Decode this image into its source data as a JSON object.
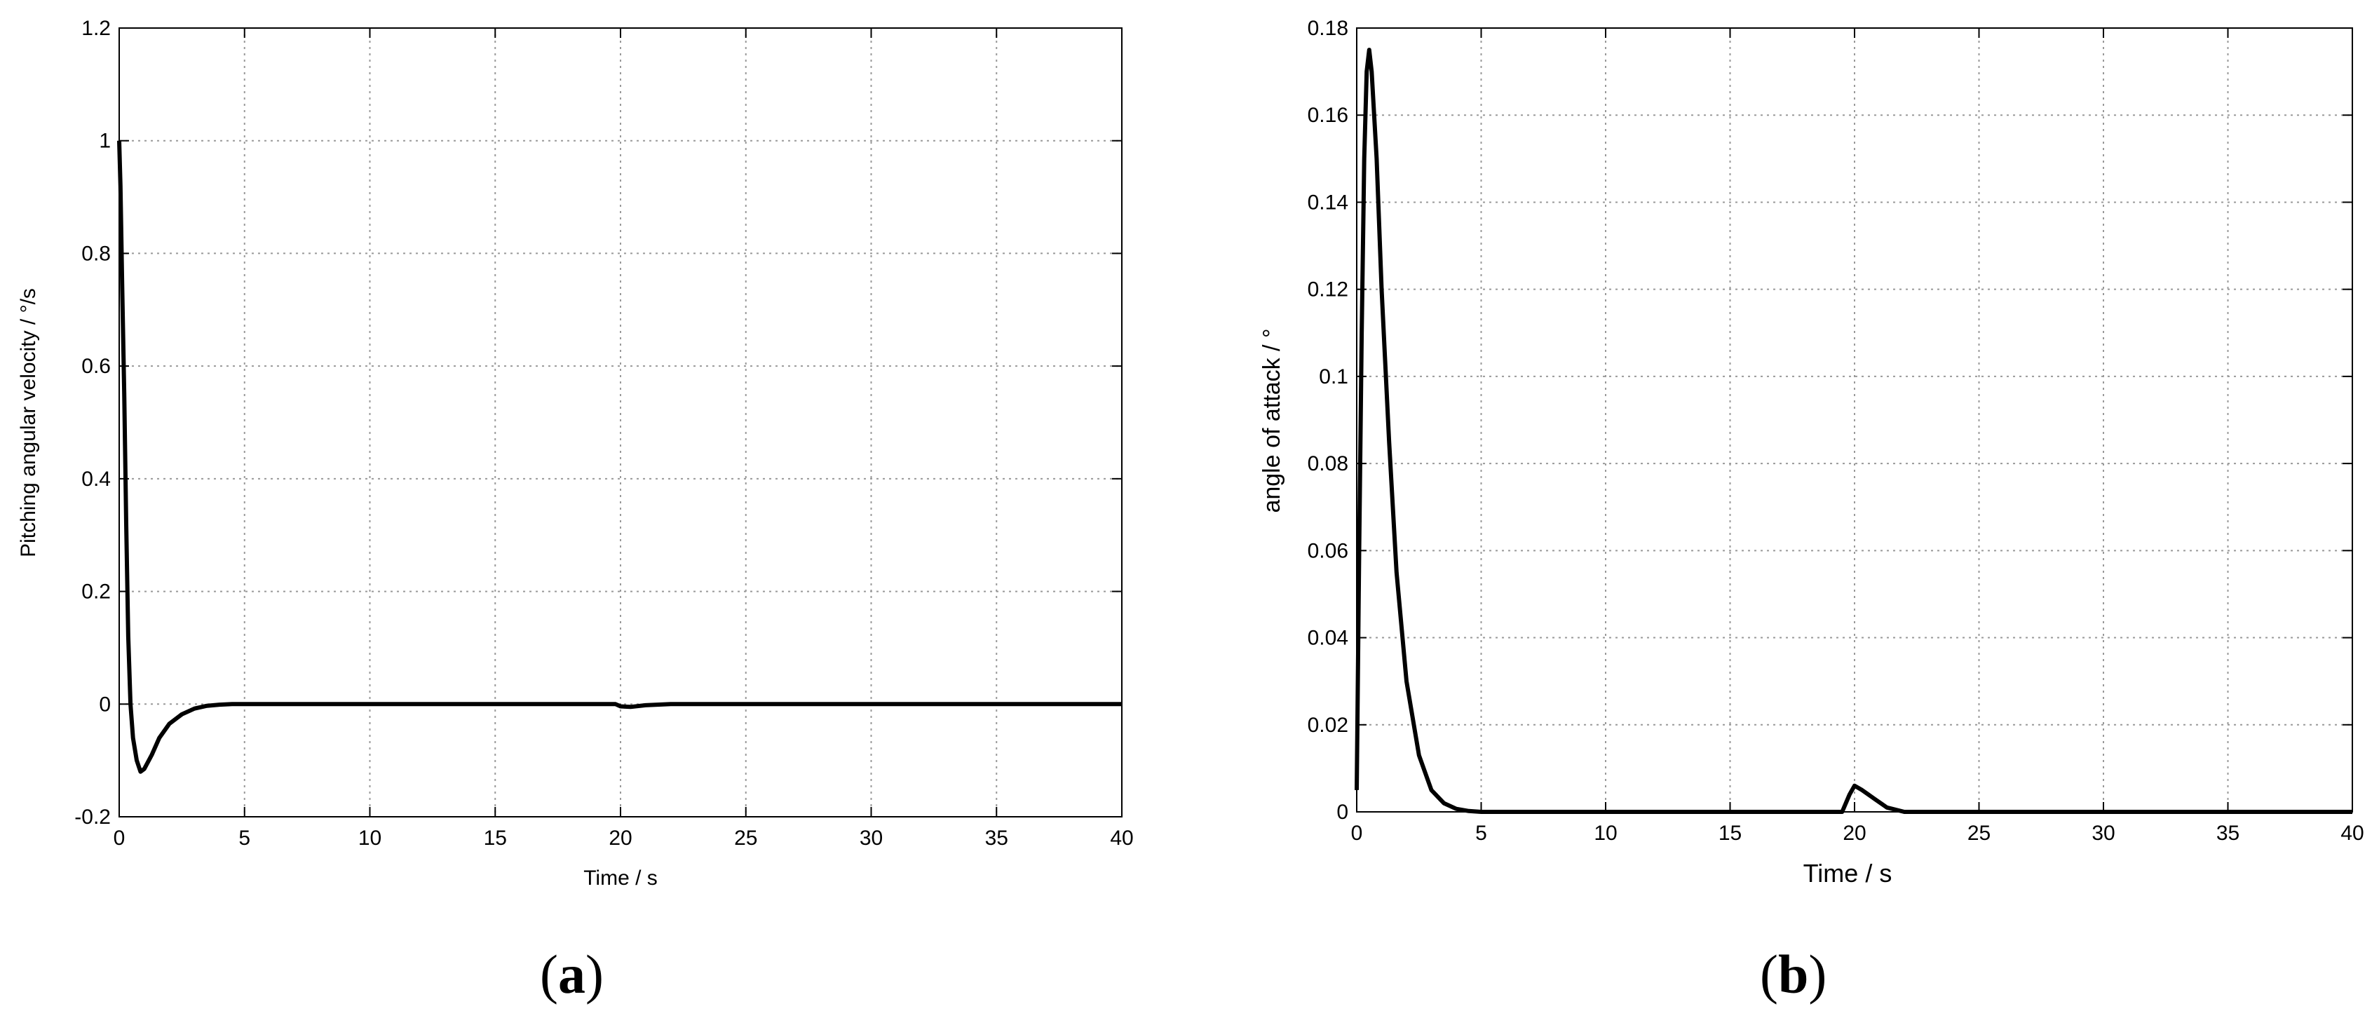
{
  "chart_data": [
    {
      "type": "line",
      "panel": "a",
      "xlabel": "Time / s",
      "ylabel": "Pitching angular velocity /  °/s",
      "xlim": [
        0,
        40
      ],
      "ylim": [
        -0.2,
        1.2
      ],
      "xticks": [
        0,
        5,
        10,
        15,
        20,
        25,
        30,
        35,
        40
      ],
      "yticks": [
        -0.2,
        0,
        0.2,
        0.4,
        0.6,
        0.8,
        1,
        1.2
      ],
      "ytick_labels": [
        "-0.2",
        "0",
        "0.2",
        "0.4",
        "0.6",
        "0.8",
        "1",
        "1.2"
      ],
      "grid": true,
      "series": [
        {
          "color": "#000000",
          "x": [
            0,
            0.05,
            0.12,
            0.2,
            0.28,
            0.36,
            0.45,
            0.55,
            0.7,
            0.85,
            1.0,
            1.3,
            1.6,
            2.0,
            2.5,
            3.0,
            3.5,
            4.0,
            4.5,
            5.0,
            10,
            19.8,
            20.0,
            20.4,
            21,
            22,
            40
          ],
          "y": [
            1.0,
            0.92,
            0.74,
            0.55,
            0.32,
            0.12,
            0.0,
            -0.06,
            -0.1,
            -0.12,
            -0.115,
            -0.09,
            -0.06,
            -0.035,
            -0.018,
            -0.008,
            -0.003,
            -0.001,
            0.0,
            0.0,
            0.0,
            0.0,
            -0.004,
            -0.005,
            -0.002,
            0.0,
            0.0
          ]
        }
      ]
    },
    {
      "type": "line",
      "panel": "b",
      "xlabel": "Time / s",
      "ylabel": "angle of attack / °",
      "xlim": [
        0,
        40
      ],
      "ylim": [
        0,
        0.18
      ],
      "xticks": [
        0,
        5,
        10,
        15,
        20,
        25,
        30,
        35,
        40
      ],
      "yticks": [
        0,
        0.02,
        0.04,
        0.06,
        0.08,
        0.1,
        0.12,
        0.14,
        0.16,
        0.18
      ],
      "ytick_labels": [
        "0",
        "0.02",
        "0.04",
        "0.06",
        "0.08",
        "0.1",
        "0.12",
        "0.14",
        "0.16",
        "0.18"
      ],
      "grid": true,
      "series": [
        {
          "color": "#000000",
          "x": [
            0,
            0.1,
            0.2,
            0.3,
            0.4,
            0.5,
            0.6,
            0.8,
            1.0,
            1.3,
            1.6,
            2.0,
            2.5,
            3.0,
            3.5,
            4.0,
            4.5,
            5.0,
            10,
            19.5,
            19.8,
            20.0,
            20.3,
            20.8,
            21.3,
            22,
            25,
            40
          ],
          "y": [
            0.005,
            0.06,
            0.11,
            0.15,
            0.17,
            0.175,
            0.17,
            0.15,
            0.12,
            0.085,
            0.055,
            0.03,
            0.013,
            0.005,
            0.002,
            0.0007,
            0.0002,
            0.0,
            0.0,
            0.0,
            0.004,
            0.006,
            0.005,
            0.003,
            0.001,
            0.0,
            0.0,
            0.0
          ]
        }
      ]
    }
  ],
  "captions": {
    "a": {
      "open": "(",
      "letter": "a",
      "close": ")"
    },
    "b": {
      "open": "(",
      "letter": "b",
      "close": ")"
    }
  }
}
